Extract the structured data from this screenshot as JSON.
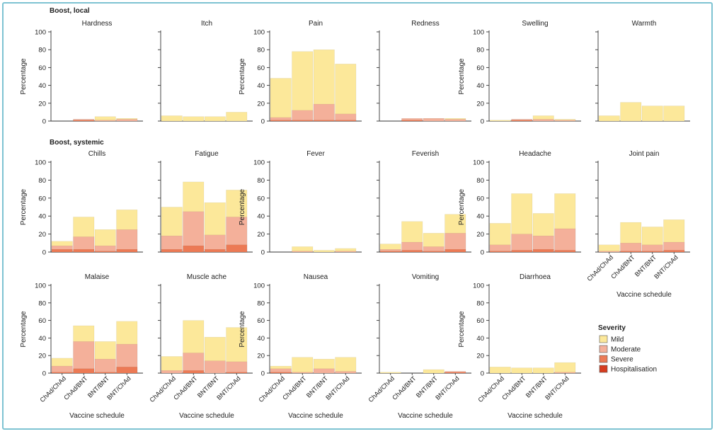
{
  "colors": {
    "mild": "#fce89a",
    "moderate": "#f4b09a",
    "severe": "#ec7a55",
    "hospitalisation": "#d63c1f",
    "frame": "#7ec3d2",
    "axis": "#333333"
  },
  "sections": [
    {
      "title": "Boost, local"
    },
    {
      "title": "Boost, systemic"
    }
  ],
  "legend": {
    "title": "Severity",
    "items": [
      {
        "label": "Mild",
        "color": "#fce89a"
      },
      {
        "label": "Moderate",
        "color": "#f4b09a"
      },
      {
        "label": "Severe",
        "color": "#ec7a55"
      },
      {
        "label": "Hospitalisation",
        "color": "#d63c1f"
      }
    ]
  },
  "chart_data": {
    "type": "bar",
    "stacked": true,
    "categories": [
      "ChAd/ChAd",
      "ChAd/BNT",
      "BNT/BNT",
      "BNT/ChAd"
    ],
    "ylabel": "Percentage",
    "xlabel": "Vaccine schedule",
    "ylim": [
      0,
      100
    ],
    "yticks": [
      0,
      20,
      40,
      60,
      80,
      100
    ],
    "severity_levels": [
      "Hospitalisation",
      "Severe",
      "Moderate",
      "Mild"
    ],
    "panels": [
      {
        "title": "Hardness",
        "totals": [
          0,
          2,
          5,
          3
        ],
        "hospitalisation": [
          0,
          0,
          0,
          0
        ],
        "severe": [
          0,
          1,
          0,
          0
        ],
        "moderate": [
          0,
          1,
          1,
          2
        ]
      },
      {
        "title": "Itch",
        "totals": [
          6,
          5,
          5,
          10
        ],
        "hospitalisation": [
          0,
          0,
          0,
          0
        ],
        "severe": [
          0,
          0,
          0,
          0
        ],
        "moderate": [
          0,
          0,
          0,
          0
        ]
      },
      {
        "title": "Pain",
        "totals": [
          48,
          78,
          80,
          64
        ],
        "hospitalisation": [
          0,
          0,
          0,
          0
        ],
        "severe": [
          1,
          1,
          1,
          1
        ],
        "moderate": [
          3,
          11,
          18,
          7
        ]
      },
      {
        "title": "Redness",
        "totals": [
          0,
          2,
          3,
          3
        ],
        "hospitalisation": [
          0,
          0,
          0,
          0
        ],
        "severe": [
          0,
          1,
          0,
          0
        ],
        "moderate": [
          0,
          2,
          3,
          2
        ]
      },
      {
        "title": "Swelling",
        "totals": [
          1,
          2,
          6,
          2
        ],
        "hospitalisation": [
          0,
          0,
          0,
          0
        ],
        "severe": [
          0,
          1,
          0,
          0
        ],
        "moderate": [
          0,
          1,
          2,
          1
        ]
      },
      {
        "title": "Warmth",
        "totals": [
          6,
          21,
          17,
          17
        ],
        "hospitalisation": [
          0,
          0,
          0,
          0
        ],
        "severe": [
          0,
          0,
          0,
          0
        ],
        "moderate": [
          0,
          0,
          0,
          0
        ]
      },
      {
        "title": "Chills",
        "totals": [
          12,
          39,
          25,
          47
        ],
        "hospitalisation": [
          0,
          0,
          0,
          0
        ],
        "severe": [
          3,
          3,
          1,
          3
        ],
        "moderate": [
          4,
          14,
          6,
          22
        ]
      },
      {
        "title": "Fatigue",
        "totals": [
          50,
          78,
          55,
          69
        ],
        "hospitalisation": [
          0,
          0,
          0,
          0
        ],
        "severe": [
          3,
          7,
          3,
          8
        ],
        "moderate": [
          15,
          38,
          16,
          31
        ]
      },
      {
        "title": "Fever",
        "totals": [
          0,
          6,
          2,
          4
        ],
        "hospitalisation": [
          0,
          0,
          0,
          0
        ],
        "severe": [
          0,
          0,
          0,
          0
        ],
        "moderate": [
          0,
          1,
          0,
          1
        ]
      },
      {
        "title": "Feverish",
        "totals": [
          9,
          34,
          21,
          42
        ],
        "hospitalisation": [
          0,
          0,
          0,
          0
        ],
        "severe": [
          1,
          2,
          1,
          3
        ],
        "moderate": [
          2,
          9,
          5,
          18
        ]
      },
      {
        "title": "Headache",
        "totals": [
          32,
          65,
          43,
          65
        ],
        "hospitalisation": [
          0,
          0,
          0,
          0
        ],
        "severe": [
          1,
          2,
          3,
          2
        ],
        "moderate": [
          7,
          18,
          15,
          24
        ]
      },
      {
        "title": "Joint pain",
        "totals": [
          8,
          33,
          28,
          36
        ],
        "hospitalisation": [
          0,
          0,
          0,
          0
        ],
        "severe": [
          0,
          1,
          1,
          2
        ],
        "moderate": [
          1,
          9,
          7,
          9
        ]
      },
      {
        "title": "Malaise",
        "totals": [
          17,
          54,
          36,
          59
        ],
        "hospitalisation": [
          0,
          0,
          0,
          0
        ],
        "severe": [
          1,
          5,
          1,
          7
        ],
        "moderate": [
          7,
          31,
          15,
          26
        ]
      },
      {
        "title": "Muscle ache",
        "totals": [
          19,
          60,
          41,
          52
        ],
        "hospitalisation": [
          0,
          0,
          0,
          0
        ],
        "severe": [
          0,
          3,
          0,
          1
        ],
        "moderate": [
          3,
          20,
          14,
          12
        ]
      },
      {
        "title": "Nausea",
        "totals": [
          8,
          18,
          16,
          18
        ],
        "hospitalisation": [
          0,
          0,
          0,
          0
        ],
        "severe": [
          1,
          0,
          0,
          0
        ],
        "moderate": [
          4,
          1,
          5,
          2
        ]
      },
      {
        "title": "Vomiting",
        "totals": [
          1,
          0,
          4,
          1
        ],
        "hospitalisation": [
          0,
          0,
          0,
          0
        ],
        "severe": [
          0,
          0,
          0,
          1
        ],
        "moderate": [
          0,
          0,
          0,
          1
        ]
      },
      {
        "title": "Diarrhoea",
        "totals": [
          7,
          6,
          6,
          12
        ],
        "hospitalisation": [
          0,
          0,
          0,
          0
        ],
        "severe": [
          0,
          0,
          0,
          0
        ],
        "moderate": [
          0,
          0,
          0,
          1
        ]
      }
    ]
  }
}
